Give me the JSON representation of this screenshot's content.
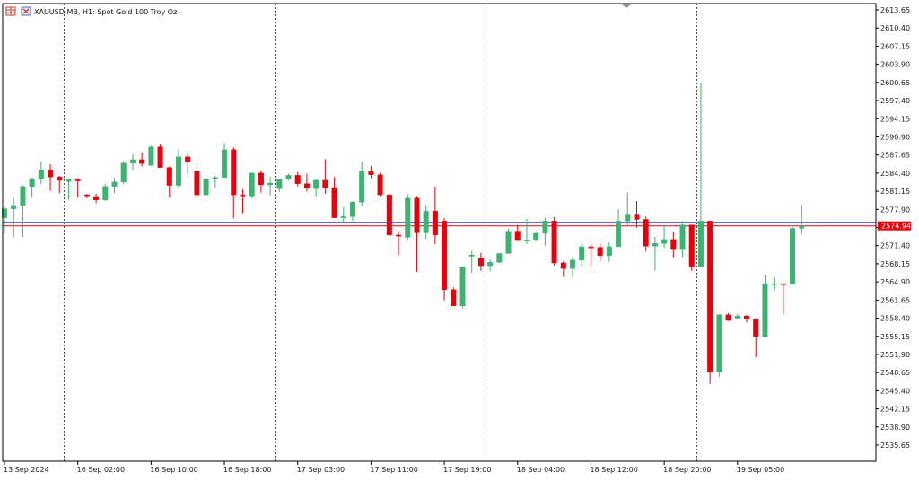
{
  "header": {
    "symbol": "XAUUSD.MB",
    "timeframe": "H1:",
    "description": "Spot Gold 100 Troy Oz",
    "icons": [
      "chart-grid-icon",
      "chart-window-icon"
    ]
  },
  "current_price_label": "2574.94",
  "colors": {
    "bull": "#3cb371",
    "bear": "#e8000b",
    "bid_line": "#e8000b",
    "ask_line": "#3f5bd6",
    "grid": "#000000",
    "axis": "#000000"
  },
  "chart_data": {
    "type": "candlestick",
    "y_ticks": [
      "2613.65",
      "2610.40",
      "2607.15",
      "2603.90",
      "2600.65",
      "2597.40",
      "2594.15",
      "2590.90",
      "2587.65",
      "2584.40",
      "2581.15",
      "2577.90",
      "2574.65",
      "2571.40",
      "2568.15",
      "2564.90",
      "2561.65",
      "2558.40",
      "2555.15",
      "2551.90",
      "2548.65",
      "2545.40",
      "2542.15",
      "2538.90",
      "2535.65"
    ],
    "ylim": [
      2533.2,
      2615.0
    ],
    "x_labels": [
      {
        "bar": 0,
        "label": "13 Sep 2024"
      },
      {
        "bar": 8,
        "label": "16 Sep 02:00"
      },
      {
        "bar": 16,
        "label": "16 Sep 10:00"
      },
      {
        "bar": 24,
        "label": "16 Sep 18:00"
      },
      {
        "bar": 32,
        "label": "17 Sep 03:00"
      },
      {
        "bar": 40,
        "label": "17 Sep 11:00"
      },
      {
        "bar": 48,
        "label": "17 Sep 19:00"
      },
      {
        "bar": 56,
        "label": "18 Sep 04:00"
      },
      {
        "bar": 64,
        "label": "18 Sep 12:00"
      },
      {
        "bar": 72,
        "label": "18 Sep 20:00"
      },
      {
        "bar": 80,
        "label": "19 Sep 05:00"
      }
    ],
    "period_separators_after_bar": [
      6.5,
      29.5,
      52.5,
      75.5
    ],
    "bid": 2574.94,
    "ask": 2575.6,
    "candles": [
      [
        2576.4,
        2578.5,
        2573.6,
        2578.0
      ],
      [
        2578.0,
        2579.9,
        2572.9,
        2578.6
      ],
      [
        2578.6,
        2582.2,
        2572.9,
        2582.0
      ],
      [
        2582.0,
        2583.6,
        2580.1,
        2583.4
      ],
      [
        2583.4,
        2586.5,
        2582.4,
        2585.0
      ],
      [
        2585.0,
        2586.0,
        2581.2,
        2583.7
      ],
      [
        2583.7,
        2583.9,
        2580.8,
        2583.1
      ],
      [
        2582.9,
        2583.3,
        2579.6,
        2583.2
      ],
      [
        2583.2,
        2583.5,
        2580.0,
        2583.1
      ],
      [
        2580.5,
        2580.7,
        2579.9,
        2580.3
      ],
      [
        2580.2,
        2580.7,
        2579.0,
        2579.6
      ],
      [
        2579.6,
        2582.5,
        2579.4,
        2582.0
      ],
      [
        2582.0,
        2583.6,
        2580.8,
        2582.8
      ],
      [
        2582.8,
        2586.5,
        2582.4,
        2586.2
      ],
      [
        2586.2,
        2587.8,
        2585.0,
        2586.8
      ],
      [
        2586.8,
        2588.1,
        2585.6,
        2586.1
      ],
      [
        2585.8,
        2589.3,
        2585.7,
        2589.1
      ],
      [
        2589.1,
        2589.5,
        2585.9,
        2585.4
      ],
      [
        2585.4,
        2585.6,
        2580.0,
        2582.2
      ],
      [
        2582.2,
        2588.7,
        2581.7,
        2587.3
      ],
      [
        2587.3,
        2587.9,
        2584.2,
        2586.4
      ],
      [
        2584.7,
        2585.9,
        2580.3,
        2580.5
      ],
      [
        2580.5,
        2583.7,
        2579.9,
        2583.4
      ],
      [
        2583.4,
        2583.9,
        2581.7,
        2583.6
      ],
      [
        2583.6,
        2589.8,
        2583.6,
        2588.6
      ],
      [
        2588.6,
        2589.0,
        2576.3,
        2580.5
      ],
      [
        2580.5,
        2581.5,
        2577.2,
        2580.3
      ],
      [
        2580.3,
        2584.5,
        2579.9,
        2584.4
      ],
      [
        2584.4,
        2584.9,
        2580.9,
        2582.3
      ],
      [
        2582.3,
        2583.7,
        2580.4,
        2582.6
      ],
      [
        2581.6,
        2583.1,
        2581.0,
        2583.3
      ],
      [
        2583.3,
        2584.3,
        2583.1,
        2584.0
      ],
      [
        2584.0,
        2584.6,
        2582.0,
        2582.5
      ],
      [
        2582.5,
        2584.3,
        2581.1,
        2581.7
      ],
      [
        2581.6,
        2583.3,
        2580.2,
        2583.1
      ],
      [
        2583.1,
        2586.9,
        2580.7,
        2581.8
      ],
      [
        2581.8,
        2583.7,
        2576.6,
        2576.4
      ],
      [
        2576.4,
        2578.3,
        2575.5,
        2576.6
      ],
      [
        2576.6,
        2579.4,
        2575.8,
        2579.2
      ],
      [
        2579.2,
        2586.5,
        2578.5,
        2584.7
      ],
      [
        2584.7,
        2585.7,
        2583.5,
        2584.1
      ],
      [
        2584.1,
        2584.5,
        2580.3,
        2580.5
      ],
      [
        2580.5,
        2580.7,
        2573.1,
        2573.3
      ],
      [
        2573.3,
        2574.0,
        2569.7,
        2573.2
      ],
      [
        2572.9,
        2580.6,
        2572.3,
        2579.9
      ],
      [
        2579.9,
        2580.3,
        2566.7,
        2573.7
      ],
      [
        2573.7,
        2578.6,
        2572.6,
        2577.6
      ],
      [
        2577.6,
        2582.0,
        2571.7,
        2573.3
      ],
      [
        2575.8,
        2576.3,
        2561.6,
        2563.5
      ],
      [
        2563.5,
        2563.9,
        2561.1,
        2560.6
      ],
      [
        2560.6,
        2567.6,
        2560.2,
        2567.6
      ],
      [
        2569.7,
        2570.5,
        2566.5,
        2569.7
      ],
      [
        2569.2,
        2570.1,
        2566.9,
        2567.8
      ],
      [
        2567.8,
        2568.9,
        2566.8,
        2568.4
      ],
      [
        2568.4,
        2570.0,
        2568.3,
        2570.0
      ],
      [
        2570.0,
        2574.4,
        2570.0,
        2574.0
      ],
      [
        2574.0,
        2575.1,
        2572.4,
        2572.3
      ],
      [
        2572.3,
        2576.2,
        2571.7,
        2572.4
      ],
      [
        2572.4,
        2573.9,
        2572.1,
        2573.6
      ],
      [
        2573.6,
        2576.4,
        2571.4,
        2575.8
      ],
      [
        2575.8,
        2576.5,
        2567.8,
        2568.3
      ],
      [
        2568.3,
        2568.6,
        2565.8,
        2567.3
      ],
      [
        2567.3,
        2569.4,
        2565.8,
        2568.8
      ],
      [
        2568.8,
        2571.8,
        2567.5,
        2571.2
      ],
      [
        2571.2,
        2571.8,
        2567.5,
        2571.1
      ],
      [
        2571.1,
        2571.8,
        2568.6,
        2569.6
      ],
      [
        2569.6,
        2572.0,
        2568.5,
        2571.2
      ],
      [
        2571.2,
        2577.9,
        2571.2,
        2575.8
      ],
      [
        2575.8,
        2580.9,
        2575.1,
        2576.9
      ],
      [
        2576.9,
        2579.4,
        2574.6,
        2576.1
      ],
      [
        2576.1,
        2576.6,
        2570.3,
        2571.3
      ],
      [
        2571.3,
        2573.0,
        2566.9,
        2571.8
      ],
      [
        2571.8,
        2575.0,
        2571.0,
        2572.5
      ],
      [
        2572.5,
        2573.9,
        2569.3,
        2570.7
      ],
      [
        2570.7,
        2575.8,
        2569.3,
        2575.1
      ],
      [
        2575.1,
        2575.1,
        2566.9,
        2567.7
      ],
      [
        2567.7,
        2600.6,
        2567.7,
        2575.8
      ],
      [
        2575.8,
        2575.8,
        2546.6,
        2548.7
      ],
      [
        2548.7,
        2559.1,
        2547.9,
        2559.0
      ],
      [
        2559.0,
        2559.3,
        2557.9,
        2558.0
      ],
      [
        2558.4,
        2559.2,
        2558.2,
        2558.8
      ],
      [
        2558.8,
        2559.0,
        2557.6,
        2558.2
      ],
      [
        2558.2,
        2558.4,
        2551.4,
        2555.1
      ],
      [
        2555.1,
        2566.2,
        2554.9,
        2564.6
      ],
      [
        2564.6,
        2565.7,
        2563.4,
        2564.6
      ],
      [
        2564.6,
        2564.6,
        2559.1,
        2564.5
      ],
      [
        2564.5,
        2575.0,
        2564.5,
        2574.5
      ],
      [
        2574.5,
        2578.7,
        2573.4,
        2574.9
      ]
    ]
  }
}
